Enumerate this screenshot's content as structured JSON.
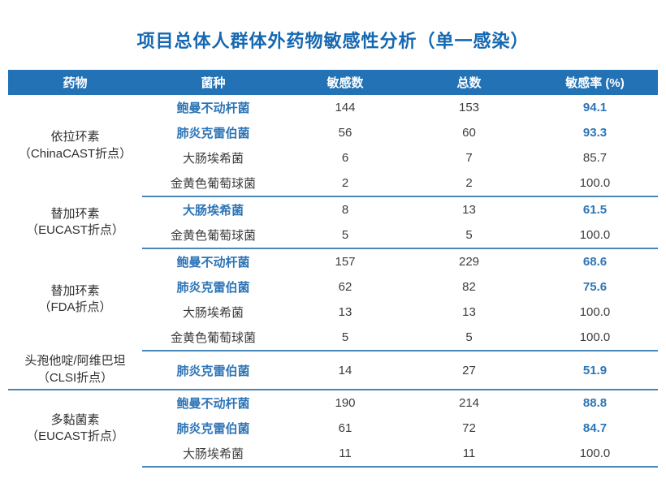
{
  "title": "项目总体人群体外药物敏感性分析（单一感染）",
  "colors": {
    "header_bg": "#2272b5",
    "header_text": "#ffffff",
    "title_blue": "#1568b1",
    "highlight_blue": "#2e75b6",
    "body_text": "#3c3c3c",
    "separator_line": "#4a86b8"
  },
  "table": {
    "headers": [
      "药物",
      "菌种",
      "敏感数",
      "总数",
      "敏感率 (%)"
    ],
    "groups": [
      {
        "drug": "依拉环素",
        "breakpoint": "（ChinaCAST折点）",
        "rows": [
          {
            "species": "鲍曼不动杆菌",
            "sensitive": 144,
            "total": 153,
            "rate": "94.1",
            "highlight": true
          },
          {
            "species": "肺炎克雷伯菌",
            "sensitive": 56,
            "total": 60,
            "rate": "93.3",
            "highlight": true
          },
          {
            "species": "大肠埃希菌",
            "sensitive": 6,
            "total": 7,
            "rate": "85.7",
            "highlight": false
          },
          {
            "species": "金黄色葡萄球菌",
            "sensitive": 2,
            "total": 2,
            "rate": "100.0",
            "highlight": false
          }
        ]
      },
      {
        "drug": "替加环素",
        "breakpoint": "（EUCAST折点）",
        "rows": [
          {
            "species": "大肠埃希菌",
            "sensitive": 8,
            "total": 13,
            "rate": "61.5",
            "highlight": true
          },
          {
            "species": "金黄色葡萄球菌",
            "sensitive": 5,
            "total": 5,
            "rate": "100.0",
            "highlight": false
          }
        ]
      },
      {
        "drug": "替加环素",
        "breakpoint": "（FDA折点）",
        "rows": [
          {
            "species": "鲍曼不动杆菌",
            "sensitive": 157,
            "total": 229,
            "rate": "68.6",
            "highlight": true
          },
          {
            "species": "肺炎克雷伯菌",
            "sensitive": 62,
            "total": 82,
            "rate": "75.6",
            "highlight": true
          },
          {
            "species": "大肠埃希菌",
            "sensitive": 13,
            "total": 13,
            "rate": "100.0",
            "highlight": false
          },
          {
            "species": "金黄色葡萄球菌",
            "sensitive": 5,
            "total": 5,
            "rate": "100.0",
            "highlight": false
          }
        ]
      },
      {
        "drug": "头孢他啶/阿维巴坦",
        "breakpoint": "（CLSI折点）",
        "tall": true,
        "rows": [
          {
            "species": "肺炎克雷伯菌",
            "sensitive": 14,
            "total": 27,
            "rate": "51.9",
            "highlight": true
          }
        ]
      },
      {
        "drug": "多黏菌素",
        "breakpoint": "（EUCAST折点）",
        "rows": [
          {
            "species": "鲍曼不动杆菌",
            "sensitive": 190,
            "total": 214,
            "rate": "88.8",
            "highlight": true
          },
          {
            "species": "肺炎克雷伯菌",
            "sensitive": 61,
            "total": 72,
            "rate": "84.7",
            "highlight": true
          },
          {
            "species": "大肠埃希菌",
            "sensitive": 11,
            "total": 11,
            "rate": "100.0",
            "highlight": false
          }
        ]
      }
    ]
  }
}
